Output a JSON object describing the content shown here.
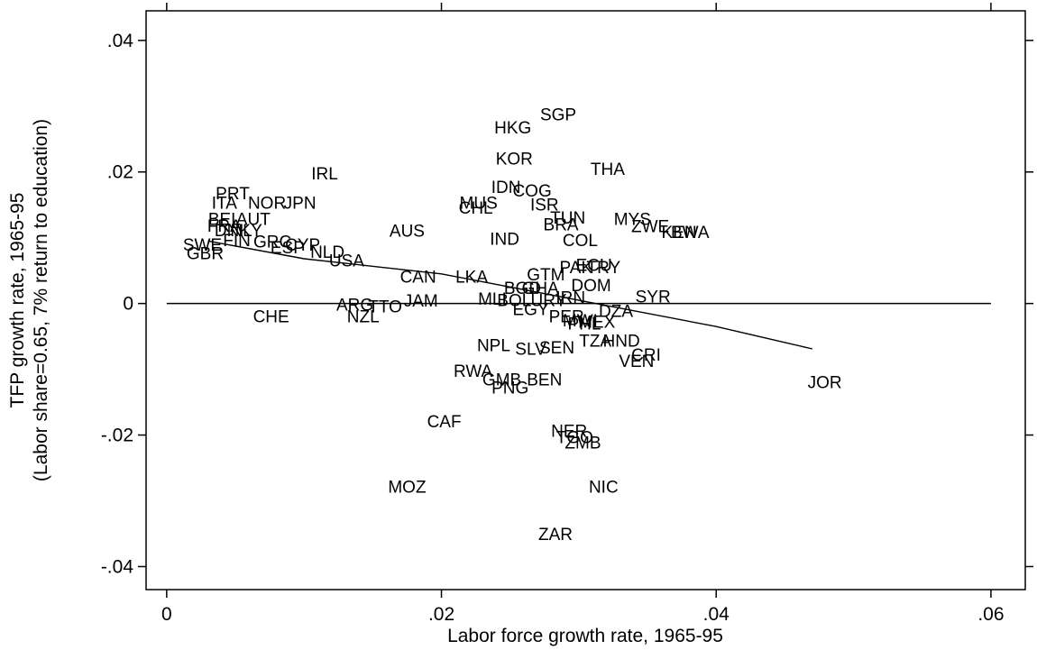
{
  "chart_data": {
    "type": "scatter",
    "title": "",
    "xlabel": "Labor force growth rate, 1965-95",
    "ylabel_lines": [
      "TFP growth rate, 1965-95",
      "(Labor share=0.65, 7% return to education)"
    ],
    "xlim": [
      -0.0015,
      0.0625
    ],
    "ylim": [
      -0.0435,
      0.0445
    ],
    "x_ticks": [
      0,
      0.02,
      0.04,
      0.06
    ],
    "x_tick_labels": [
      "0",
      ".02",
      ".04",
      ".06"
    ],
    "y_ticks": [
      -0.04,
      -0.02,
      0,
      0.02,
      0.04
    ],
    "y_tick_labels": [
      "-.04",
      "-.02",
      "0",
      ".02",
      ".04"
    ],
    "reference_line": {
      "y": 0,
      "x_from": 0,
      "x_to": 0.06
    },
    "fit_line": [
      [
        0.003,
        0.0095
      ],
      [
        0.01,
        0.0068
      ],
      [
        0.02,
        0.0045
      ],
      [
        0.03,
        0.0005
      ],
      [
        0.04,
        -0.0035
      ],
      [
        0.047,
        -0.0069
      ]
    ],
    "points": [
      {
        "label": "SGP",
        "x": 0.0285,
        "y": 0.0288
      },
      {
        "label": "HKG",
        "x": 0.0252,
        "y": 0.0268
      },
      {
        "label": "KOR",
        "x": 0.0253,
        "y": 0.0221
      },
      {
        "label": "THA",
        "x": 0.0321,
        "y": 0.0205
      },
      {
        "label": "IRL",
        "x": 0.0115,
        "y": 0.0198
      },
      {
        "label": "PRT",
        "x": 0.0048,
        "y": 0.0168
      },
      {
        "label": "IDN",
        "x": 0.0247,
        "y": 0.0178
      },
      {
        "label": "COG",
        "x": 0.0266,
        "y": 0.0172
      },
      {
        "label": "ITA",
        "x": 0.0042,
        "y": 0.0154
      },
      {
        "label": "NOR",
        "x": 0.0073,
        "y": 0.0154
      },
      {
        "label": "JPN",
        "x": 0.0097,
        "y": 0.0154
      },
      {
        "label": "MUS",
        "x": 0.0227,
        "y": 0.0154
      },
      {
        "label": "ISR",
        "x": 0.0275,
        "y": 0.0151
      },
      {
        "label": "CHL",
        "x": 0.0225,
        "y": 0.0146
      },
      {
        "label": "BEL",
        "x": 0.0042,
        "y": 0.0129
      },
      {
        "label": "AUT",
        "x": 0.0063,
        "y": 0.0129
      },
      {
        "label": "TUN",
        "x": 0.0292,
        "y": 0.0131
      },
      {
        "label": "MYS",
        "x": 0.0339,
        "y": 0.0129
      },
      {
        "label": "FRA",
        "x": 0.0042,
        "y": 0.0119
      },
      {
        "label": "BRA",
        "x": 0.0287,
        "y": 0.0121
      },
      {
        "label": "ZWE",
        "x": 0.0352,
        "y": 0.0118
      },
      {
        "label": "DNK",
        "x": 0.0048,
        "y": 0.0112
      },
      {
        "label": "NLY",
        "x": 0.0058,
        "y": 0.0112
      },
      {
        "label": "KEN",
        "x": 0.0373,
        "y": 0.0109
      },
      {
        "label": "BWA",
        "x": 0.0381,
        "y": 0.0109
      },
      {
        "label": "AUS",
        "x": 0.0175,
        "y": 0.0111
      },
      {
        "label": "IND",
        "x": 0.0246,
        "y": 0.0099
      },
      {
        "label": "COL",
        "x": 0.0301,
        "y": 0.0097
      },
      {
        "label": "FIN",
        "x": 0.0051,
        "y": 0.0097
      },
      {
        "label": "GRC",
        "x": 0.0077,
        "y": 0.0095
      },
      {
        "label": "SWE",
        "x": 0.0026,
        "y": 0.009
      },
      {
        "label": "CYP",
        "x": 0.0099,
        "y": 0.009
      },
      {
        "label": "ESP",
        "x": 0.0088,
        "y": 0.0086
      },
      {
        "label": "NLD",
        "x": 0.0117,
        "y": 0.0079
      },
      {
        "label": "GBR",
        "x": 0.0028,
        "y": 0.0077
      },
      {
        "label": "USA",
        "x": 0.0131,
        "y": 0.0066
      },
      {
        "label": "PAK",
        "x": 0.0298,
        "y": 0.0056
      },
      {
        "label": "ECU",
        "x": 0.0311,
        "y": 0.0059
      },
      {
        "label": "TRY",
        "x": 0.0318,
        "y": 0.0056
      },
      {
        "label": "CAN",
        "x": 0.0183,
        "y": 0.0041
      },
      {
        "label": "LKA",
        "x": 0.0222,
        "y": 0.0041
      },
      {
        "label": "GTM",
        "x": 0.0276,
        "y": 0.0045
      },
      {
        "label": "DOM",
        "x": 0.0309,
        "y": 0.0028
      },
      {
        "label": "BGD",
        "x": 0.0259,
        "y": 0.0024
      },
      {
        "label": "GHA",
        "x": 0.0272,
        "y": 0.0024
      },
      {
        "label": "SYR",
        "x": 0.0354,
        "y": 0.0011
      },
      {
        "label": "MLI",
        "x": 0.0237,
        "y": 0.0008
      },
      {
        "label": "BOL",
        "x": 0.0253,
        "y": 0.0006
      },
      {
        "label": "URY",
        "x": 0.0278,
        "y": 0.0006
      },
      {
        "label": "IRN",
        "x": 0.0294,
        "y": 0.001
      },
      {
        "label": "JAM",
        "x": 0.0185,
        "y": 0.0005
      },
      {
        "label": "ARG",
        "x": 0.0137,
        "y": -0.0001
      },
      {
        "label": "TTO",
        "x": 0.0159,
        "y": -0.0004
      },
      {
        "label": "EGY",
        "x": 0.0265,
        "y": -0.0008
      },
      {
        "label": "DZA",
        "x": 0.0327,
        "y": -0.0011
      },
      {
        "label": "CHE",
        "x": 0.0076,
        "y": -0.0019
      },
      {
        "label": "NZL",
        "x": 0.0143,
        "y": -0.0019
      },
      {
        "label": "PER",
        "x": 0.0291,
        "y": -0.0019
      },
      {
        "label": "MWI",
        "x": 0.0301,
        "y": -0.0025
      },
      {
        "label": "MEX",
        "x": 0.0313,
        "y": -0.0027
      },
      {
        "label": "PHL",
        "x": 0.0304,
        "y": -0.003
      },
      {
        "label": "TZA",
        "x": 0.0312,
        "y": -0.0056
      },
      {
        "label": "HND",
        "x": 0.0331,
        "y": -0.0056
      },
      {
        "label": "NPL",
        "x": 0.0238,
        "y": -0.0063
      },
      {
        "label": "SEN",
        "x": 0.0284,
        "y": -0.0066
      },
      {
        "label": "SLV",
        "x": 0.0265,
        "y": -0.0068
      },
      {
        "label": "CRI",
        "x": 0.0349,
        "y": -0.0077
      },
      {
        "label": "VEN",
        "x": 0.0342,
        "y": -0.0087
      },
      {
        "label": "RWA",
        "x": 0.0223,
        "y": -0.0102
      },
      {
        "label": "GMB",
        "x": 0.0244,
        "y": -0.0115
      },
      {
        "label": "BEN",
        "x": 0.0275,
        "y": -0.0115
      },
      {
        "label": "PNG",
        "x": 0.025,
        "y": -0.0127
      },
      {
        "label": "JOR",
        "x": 0.0479,
        "y": -0.0119
      },
      {
        "label": "CAF",
        "x": 0.0202,
        "y": -0.0179
      },
      {
        "label": "NER",
        "x": 0.0293,
        "y": -0.0193
      },
      {
        "label": "TGO",
        "x": 0.0297,
        "y": -0.0203
      },
      {
        "label": "ZMB",
        "x": 0.0303,
        "y": -0.0211
      },
      {
        "label": "MOZ",
        "x": 0.0175,
        "y": -0.0278
      },
      {
        "label": "NIC",
        "x": 0.0318,
        "y": -0.0278
      },
      {
        "label": "ZAR",
        "x": 0.0283,
        "y": -0.035
      }
    ]
  }
}
